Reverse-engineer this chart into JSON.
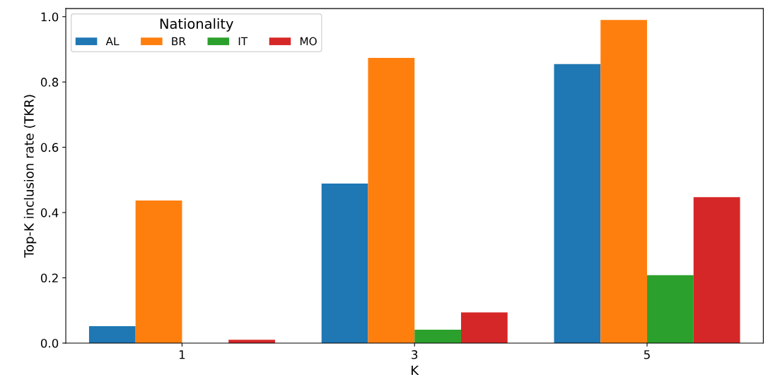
{
  "chart_data": {
    "type": "bar",
    "xlabel": "K",
    "ylabel": "Top-K inclusion rate (TKR)",
    "legend_title": "Nationality",
    "categories": [
      "1",
      "3",
      "5"
    ],
    "series": [
      {
        "name": "AL",
        "color": "#1f77b4",
        "values": [
          0.052,
          0.489,
          0.855
        ]
      },
      {
        "name": "BR",
        "color": "#ff7f0e",
        "values": [
          0.437,
          0.874,
          0.99
        ]
      },
      {
        "name": "IT",
        "color": "#2ca02c",
        "values": [
          0,
          0.041,
          0.208
        ]
      },
      {
        "name": "MO",
        "color": "#d62728",
        "values": [
          0.01,
          0.094,
          0.447
        ]
      }
    ],
    "ylim": [
      0,
      1.025
    ],
    "yticks": [
      {
        "value": 0,
        "label": "0.0"
      },
      {
        "value": 0.2,
        "label": "0.2"
      },
      {
        "value": 0.4,
        "label": "0.4"
      },
      {
        "value": 0.6,
        "label": "0.6"
      },
      {
        "value": 0.8,
        "label": "0.8"
      },
      {
        "value": 1.0,
        "label": "1.0"
      }
    ],
    "grid": false,
    "legend": "top left"
  }
}
